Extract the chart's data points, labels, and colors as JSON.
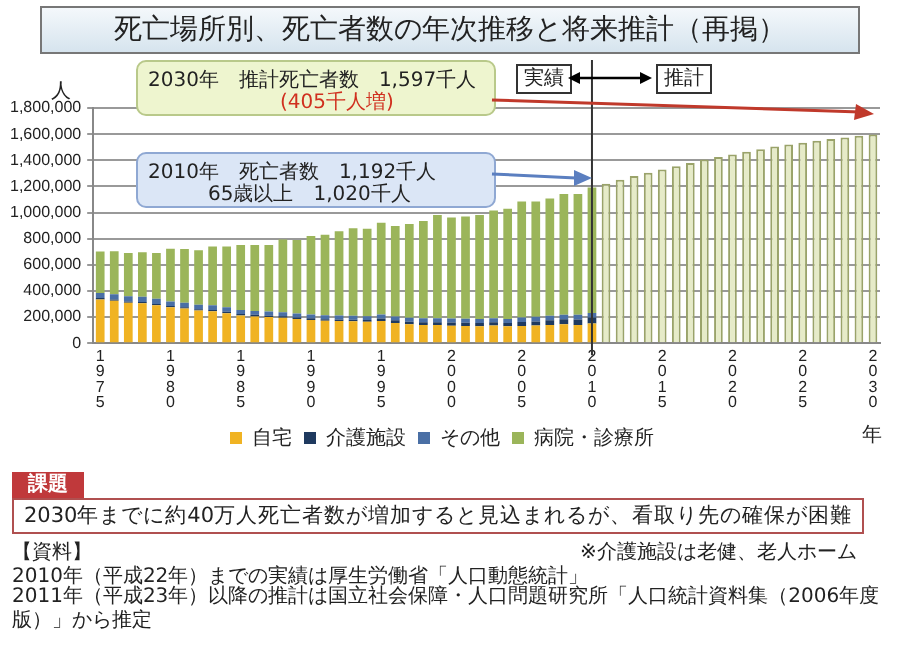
{
  "chart_data": {
    "type": "bar",
    "stacked": true,
    "title": "死亡場所別、死亡者数の年次推移と将来推計（再掲）",
    "ylabel": "人",
    "xlabel": "年",
    "categories": [
      "1975",
      null,
      null,
      null,
      null,
      "1980",
      null,
      null,
      null,
      null,
      "1985",
      null,
      null,
      null,
      null,
      "1990",
      null,
      null,
      null,
      null,
      "1995",
      null,
      null,
      null,
      null,
      "2000",
      null,
      null,
      null,
      null,
      "2005",
      null,
      null,
      null,
      null,
      "2010",
      null,
      null,
      null,
      null,
      "2015",
      null,
      null,
      null,
      null,
      "2020",
      null,
      null,
      null,
      null,
      "2025",
      null,
      null,
      null,
      null,
      "2030"
    ],
    "series": [
      {
        "name": "自宅",
        "color": "#f0b323",
        "values": [
          335000,
          325000,
          310000,
          305000,
          290000,
          275000,
          265000,
          250000,
          245000,
          230000,
          212000,
          205000,
          200000,
          195000,
          185000,
          178000,
          172000,
          170000,
          168000,
          165000,
          169000,
          155000,
          145000,
          140000,
          140000,
          134000,
          132000,
          130000,
          135000,
          130000,
          132000,
          135000,
          140000,
          145000,
          140000,
          151000,
          null,
          null,
          null,
          null,
          null,
          null,
          null,
          null,
          null,
          null,
          null,
          null,
          null,
          null,
          null,
          null,
          null,
          null,
          null,
          null
        ]
      },
      {
        "name": "介護施設",
        "color": "#1f3a5f",
        "values": [
          10000,
          10000,
          10000,
          10000,
          10000,
          10000,
          10000,
          10000,
          10000,
          10000,
          12000,
          12000,
          12000,
          12000,
          12000,
          12000,
          12000,
          12000,
          12000,
          12000,
          20000,
          20000,
          20000,
          20000,
          20000,
          25000,
          25000,
          25000,
          25000,
          25000,
          30000,
          32000,
          35000,
          38000,
          42000,
          45000,
          null,
          null,
          null,
          null,
          null,
          null,
          null,
          null,
          null,
          null,
          null,
          null,
          null,
          null,
          null,
          null,
          null,
          null,
          null,
          null
        ]
      },
      {
        "name": "その他",
        "color": "#4a6fa5",
        "values": [
          40000,
          40000,
          40000,
          40000,
          40000,
          35000,
          35000,
          35000,
          35000,
          35000,
          30000,
          30000,
          30000,
          30000,
          30000,
          30000,
          30000,
          30000,
          30000,
          30000,
          30000,
          30000,
          30000,
          30000,
          30000,
          30000,
          30000,
          30000,
          30000,
          30000,
          35000,
          35000,
          35000,
          35000,
          35000,
          35000,
          null,
          null,
          null,
          null,
          null,
          null,
          null,
          null,
          null,
          null,
          null,
          null,
          null,
          null,
          null,
          null,
          null,
          null,
          null,
          null
        ]
      },
      {
        "name": "病院・診療所",
        "color": "#9bb55a",
        "values": [
          317000,
          328000,
          330000,
          341000,
          350000,
          403000,
          410000,
          417000,
          450000,
          465000,
          498000,
          504000,
          509000,
          556000,
          562000,
          600000,
          616000,
          645000,
          669000,
          669000,
          703000,
          691000,
          718000,
          746000,
          792000,
          773000,
          783000,
          797000,
          825000,
          844000,
          887000,
          882000,
          898000,
          924000,
          925000,
          961000,
          null,
          null,
          null,
          null,
          null,
          null,
          null,
          null,
          null,
          null,
          null,
          null,
          null,
          null,
          null,
          null,
          null,
          null,
          null,
          null
        ]
      },
      {
        "color": "#e6ebc8",
        "values": [
          null,
          null,
          null,
          null,
          null,
          null,
          null,
          null,
          null,
          null,
          null,
          null,
          null,
          null,
          null,
          null,
          null,
          null,
          null,
          null,
          null,
          null,
          null,
          null,
          null,
          null,
          null,
          null,
          null,
          null,
          null,
          null,
          null,
          null,
          null,
          null,
          1220000,
          1250000,
          1280000,
          1305000,
          1330000,
          1355000,
          1380000,
          1405000,
          1425000,
          1445000,
          1465000,
          1485000,
          1505000,
          1520000,
          1535000,
          1550000,
          1563000,
          1575000,
          1587000,
          1597000
        ]
      }
    ],
    "ylim": [
      0,
      1800000
    ],
    "yticks": [
      {
        "value": 0,
        "label": "0"
      },
      {
        "value": 200000,
        "label": "200,000"
      },
      {
        "value": 400000,
        "label": "400,000"
      },
      {
        "value": 600000,
        "label": "600,000"
      },
      {
        "value": 800000,
        "label": "800,000"
      },
      {
        "value": 1000000,
        "label": "1,000,000"
      },
      {
        "value": 1200000,
        "label": "1,200,000"
      },
      {
        "value": 1400000,
        "label": "1,400,000"
      },
      {
        "value": 1600000,
        "label": "1,600,000"
      },
      {
        "value": 1800000,
        "label": "1,800,000"
      }
    ],
    "grid": "y",
    "legend": "bottom",
    "ref_lines": [
      {
        "axis": "x",
        "value": "2010",
        "color": "#333333"
      }
    ],
    "annotations": [
      "実績",
      "推計",
      "2030年　推計死亡者数　1,597千人",
      "(405千人増)",
      "2010年　死亡者数　1,192千人",
      "65歳以上　1,020千人",
      "課題",
      "2030年までに約40万人死亡者数が増加すると見込まれるが、看取り先の確保が困難",
      "【資料】",
      "2010年（平成22年）までの実績は厚生労働省「人口動態統計」",
      "2011年（平成23年）以降の推計は国立社会保障・人口問題研究所「人口統計資料集（2006年度版）」から推定",
      "※介護施設は老健、老人ホーム"
    ]
  }
}
